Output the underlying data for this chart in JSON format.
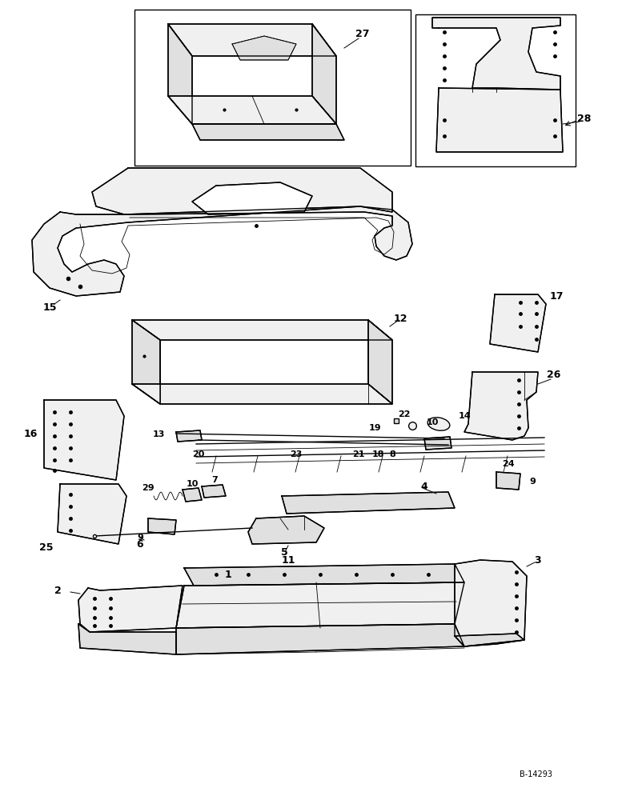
{
  "bg_color": "#ffffff",
  "line_color": "#000000",
  "figure_width": 7.72,
  "figure_height": 10.0,
  "dpi": 100,
  "watermark": "B-14293",
  "lw": 1.0,
  "lw_thin": 0.6
}
